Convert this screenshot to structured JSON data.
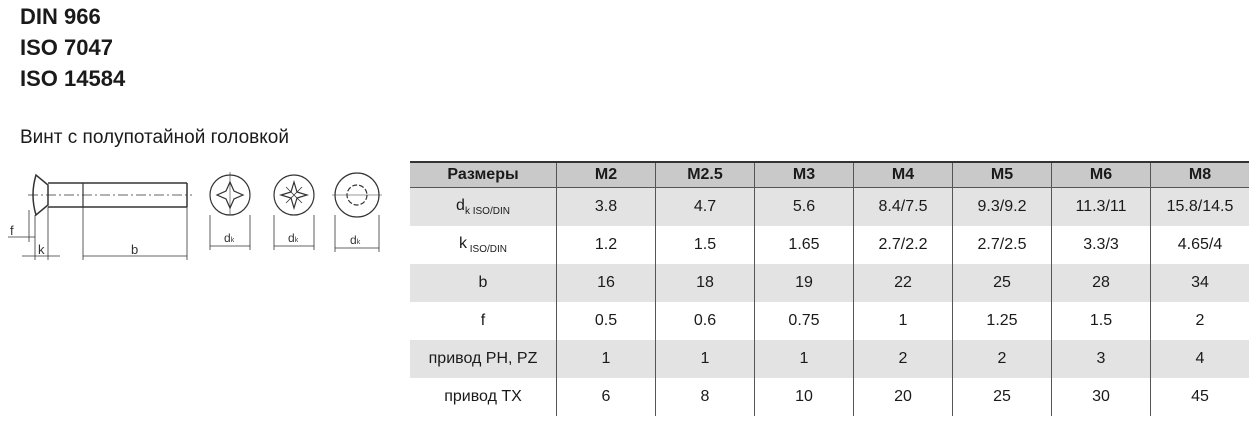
{
  "standards": [
    "DIN 966",
    "ISO 7047",
    "ISO 14584"
  ],
  "subtitle": "Винт с полупотайной головкой",
  "drawing": {
    "labels": {
      "f": "f",
      "k": "k",
      "b": "b",
      "dk_main": "d",
      "dk_sub": "k"
    }
  },
  "table": {
    "header": [
      "Размеры",
      "M2",
      "M2.5",
      "M3",
      "M4",
      "M5",
      "M6",
      "M8"
    ],
    "rows": [
      {
        "label": "d",
        "label_sub": "k ISO/DIN",
        "values": [
          "3.8",
          "4.7",
          "5.6",
          "8.4/7.5",
          "9.3/9.2",
          "11.3/11",
          "15.8/14.5"
        ]
      },
      {
        "label": "k",
        "label_sub": " ISO/DIN",
        "values": [
          "1.2",
          "1.5",
          "1.65",
          "2.7/2.2",
          "2.7/2.5",
          "3.3/3",
          "4.65/4"
        ]
      },
      {
        "label": "b",
        "label_sub": "",
        "values": [
          "16",
          "18",
          "19",
          "22",
          "25",
          "28",
          "34"
        ]
      },
      {
        "label": "f",
        "label_sub": "",
        "values": [
          "0.5",
          "0.6",
          "0.75",
          "1",
          "1.25",
          "1.5",
          "2"
        ]
      },
      {
        "label": "привод PH, PZ",
        "label_sub": "",
        "values": [
          "1",
          "1",
          "1",
          "2",
          "2",
          "3",
          "4"
        ]
      },
      {
        "label": "привод TX",
        "label_sub": "",
        "values": [
          "6",
          "8",
          "10",
          "20",
          "25",
          "30",
          "45"
        ]
      }
    ]
  }
}
